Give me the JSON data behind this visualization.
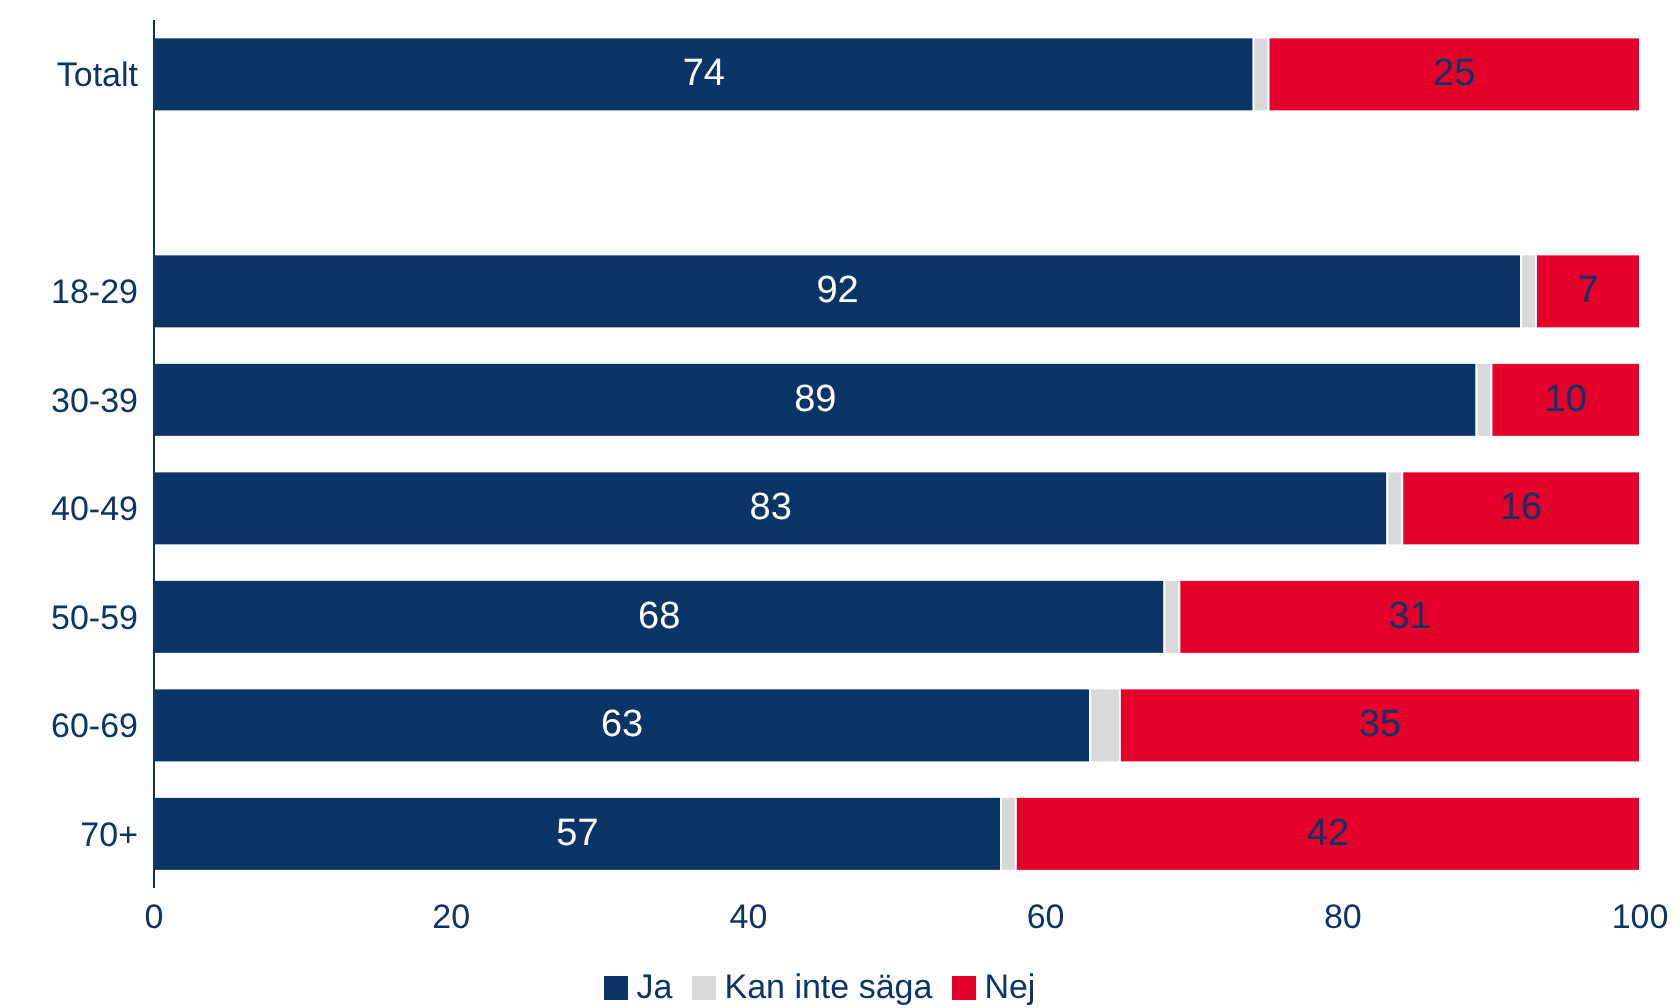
{
  "chart_data": {
    "type": "bar",
    "orientation": "horizontal",
    "stacked": true,
    "categories": [
      "Totalt",
      null,
      "18-29",
      "30-39",
      "40-49",
      "50-59",
      "60-69",
      "70+"
    ],
    "series": [
      {
        "name": "Ja",
        "color": "#0c3567",
        "values": [
          74,
          null,
          92,
          89,
          83,
          68,
          63,
          57
        ],
        "value_labels": [
          "74",
          null,
          "92",
          "89",
          "83",
          "68",
          "63",
          "57"
        ]
      },
      {
        "name": "Kan inte säga",
        "color": "#d9d9d9",
        "values": [
          1,
          null,
          1,
          1,
          1,
          1,
          2,
          1
        ],
        "value_labels": [
          null,
          null,
          null,
          null,
          null,
          null,
          null,
          null
        ]
      },
      {
        "name": "Nej",
        "color": "#e4002b",
        "values": [
          25,
          null,
          7,
          10,
          16,
          31,
          35,
          42
        ],
        "value_labels": [
          "25",
          null,
          "7",
          "10",
          "16",
          "31",
          "35",
          "42"
        ]
      }
    ],
    "xlim": [
      0,
      100
    ],
    "xticks": [
      0,
      20,
      40,
      60,
      80,
      100
    ],
    "grid": false,
    "legend": "bottom"
  }
}
